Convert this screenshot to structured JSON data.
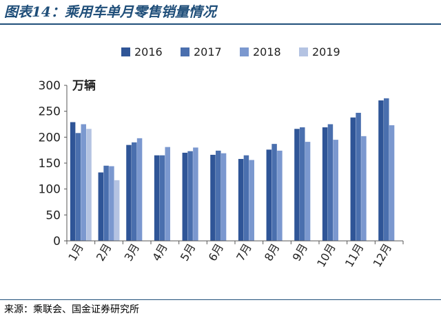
{
  "title": "图表14：乘用车单月零售销量情况",
  "source": "来源：乘联会、国金证券研究所",
  "chart_data": {
    "type": "bar",
    "title": "图表14：乘用车单月零售销量情况",
    "ylabel": "万辆",
    "xlabel": "",
    "ylim": [
      0,
      300
    ],
    "yticks": [
      0,
      50,
      100,
      150,
      200,
      250,
      300
    ],
    "grid": false,
    "legend_position": "top",
    "categories": [
      "1月",
      "2月",
      "3月",
      "4月",
      "5月",
      "6月",
      "7月",
      "8月",
      "9月",
      "10月",
      "11月",
      "12月"
    ],
    "series": [
      {
        "name": "2016",
        "color": "#2f5597",
        "values": [
          229,
          132,
          185,
          165,
          170,
          166,
          158,
          176,
          216,
          219,
          238,
          271
        ]
      },
      {
        "name": "2017",
        "color": "#4a6fae",
        "values": [
          208,
          145,
          190,
          165,
          173,
          174,
          165,
          187,
          219,
          225,
          247,
          275
        ]
      },
      {
        "name": "2018",
        "color": "#7b98cf",
        "values": [
          225,
          144,
          198,
          181,
          180,
          169,
          156,
          174,
          191,
          195,
          202,
          223
        ]
      },
      {
        "name": "2019",
        "color": "#b4c3e2",
        "values": [
          216,
          117,
          null,
          null,
          null,
          null,
          null,
          null,
          null,
          null,
          null,
          null
        ]
      }
    ]
  }
}
